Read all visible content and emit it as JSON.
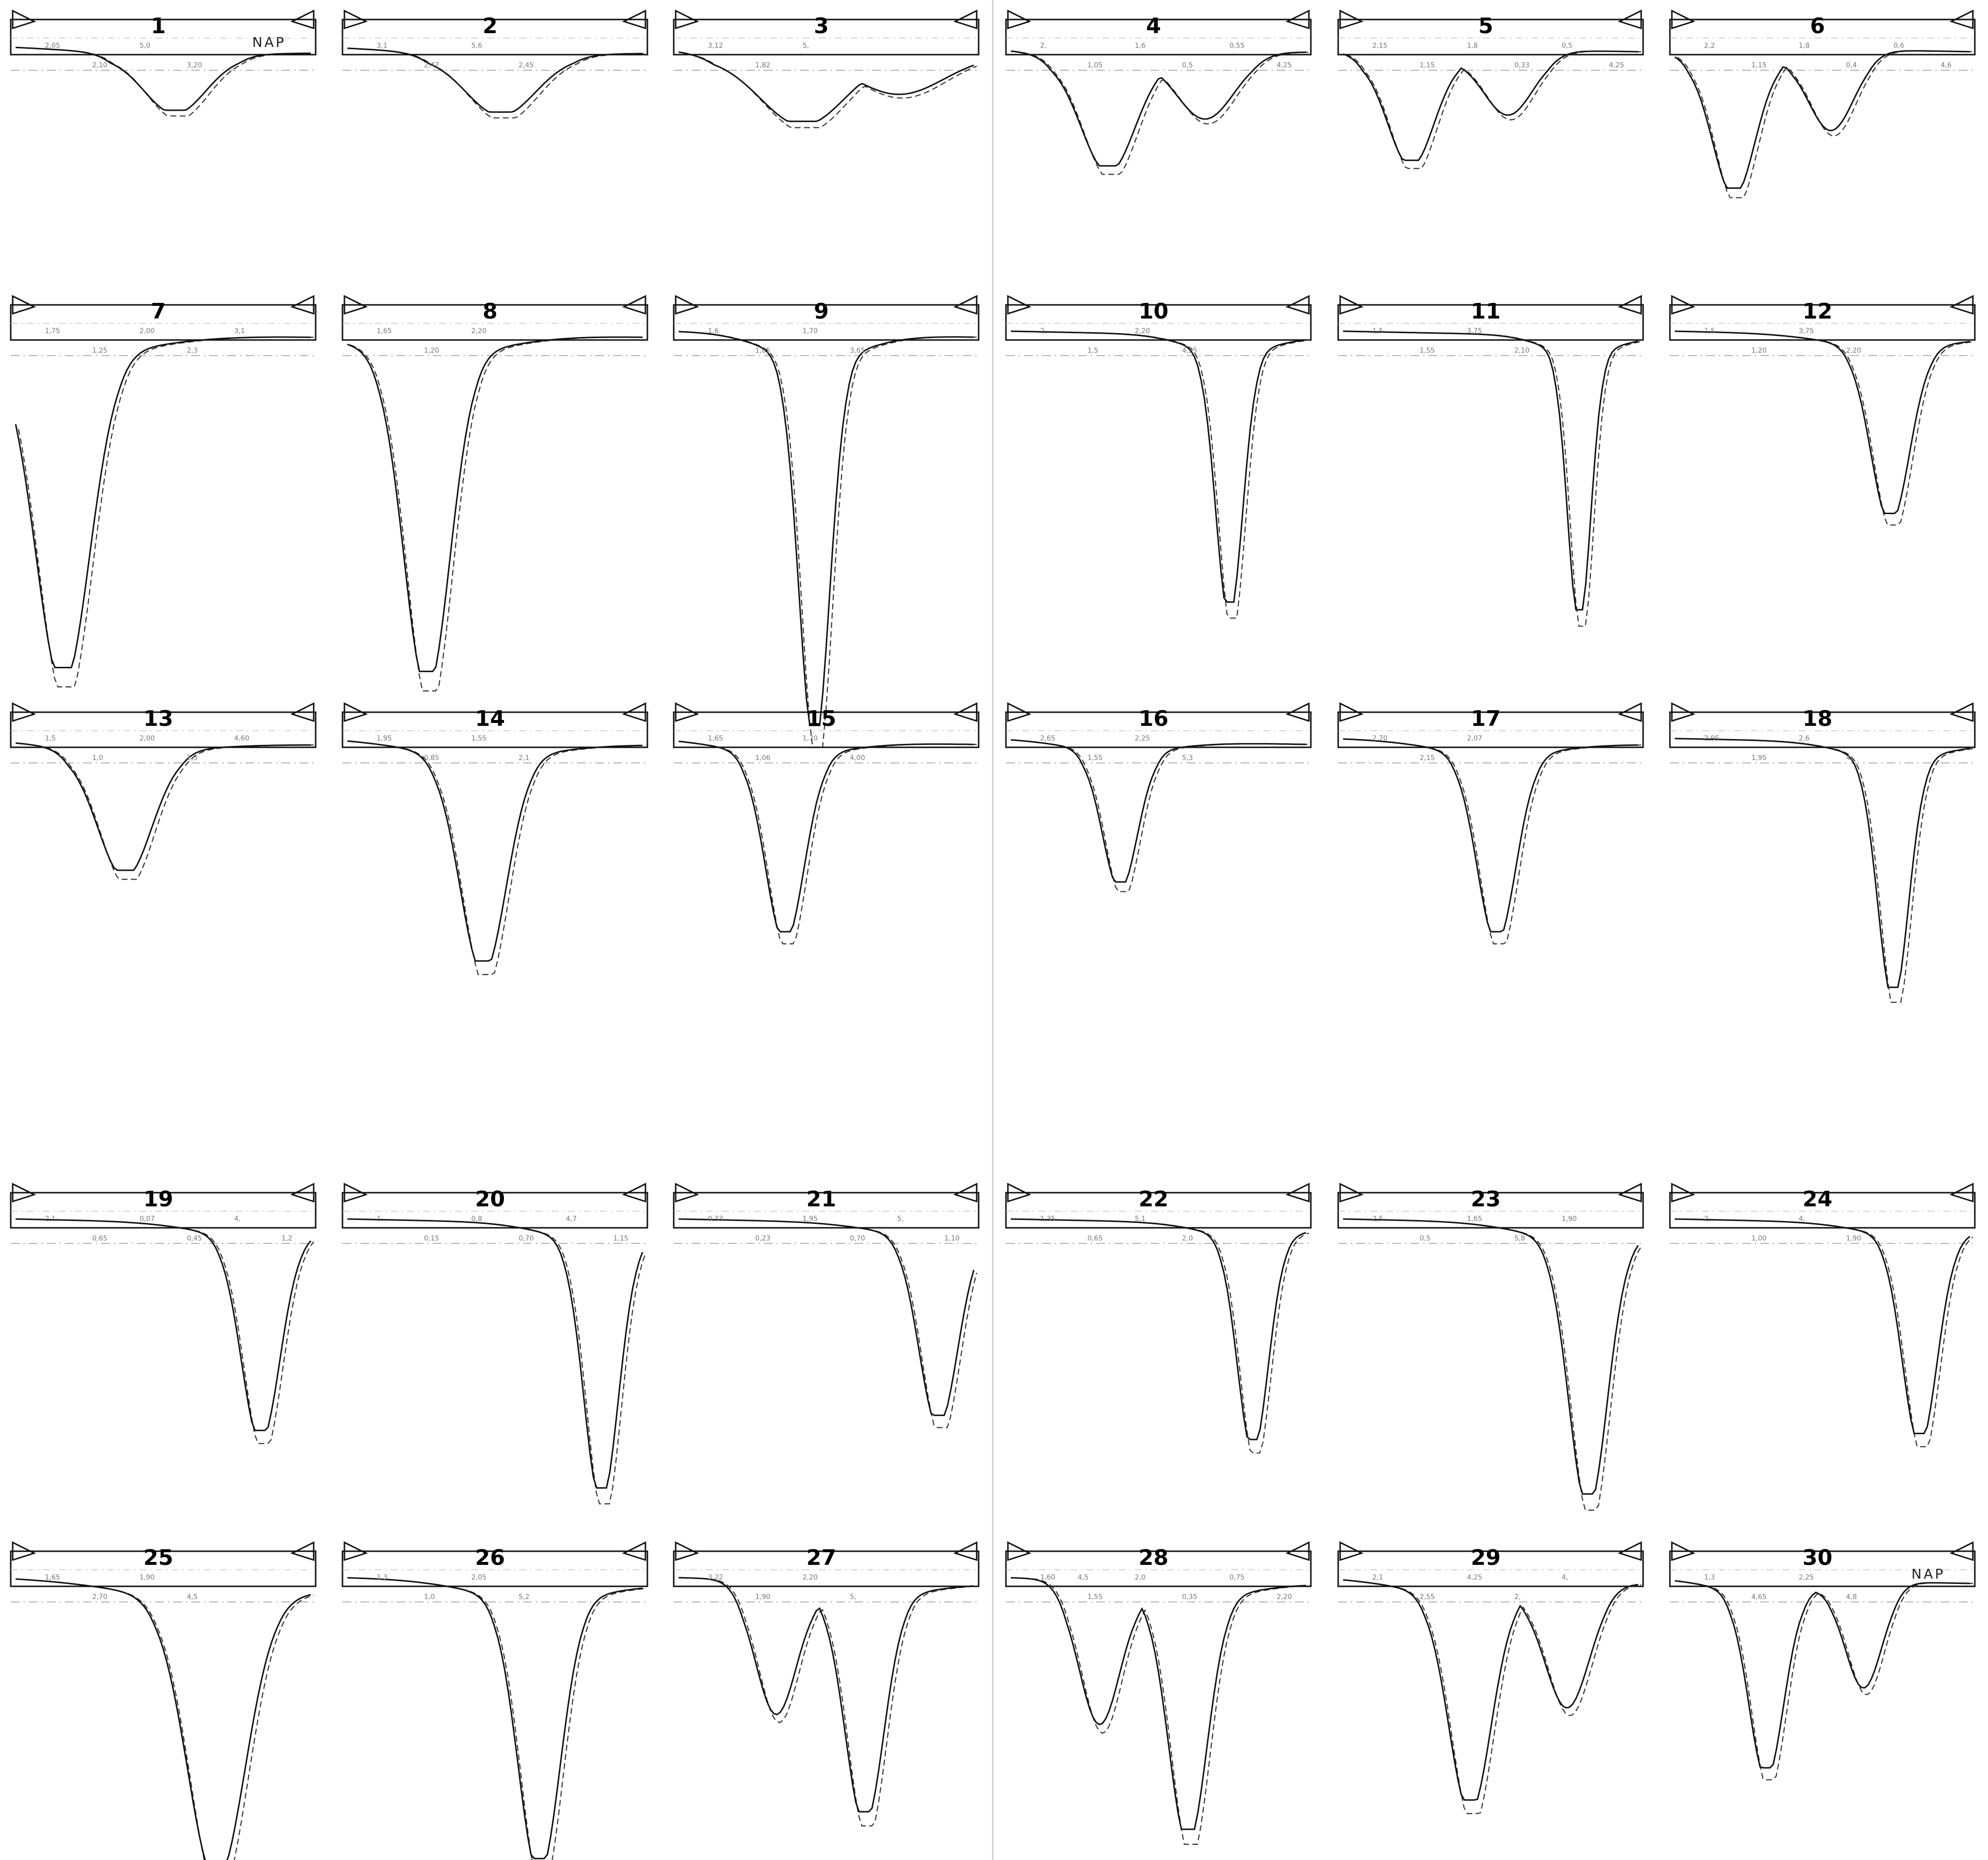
{
  "sheet": {
    "nap_label": "NAP",
    "nap_profiles": [
      1,
      30
    ]
  },
  "profiles": [
    {
      "number": "1",
      "labels": [
        "2,05",
        "2,10",
        "5,0",
        "3,20"
      ],
      "depth": 0.3,
      "shape": "single",
      "center": 0.54,
      "width": 0.16
    },
    {
      "number": "2",
      "labels": [
        "3,1",
        "2,47",
        "5,6",
        "2,45"
      ],
      "depth": 0.31,
      "shape": "single",
      "center": 0.52,
      "width": 0.18
    },
    {
      "number": "3",
      "labels": [
        "3,12",
        "1,82",
        "5,"
      ],
      "depth": 0.36,
      "shape": "double",
      "center": 0.42,
      "width": 0.22
    },
    {
      "number": "4",
      "labels": [
        "2,",
        "1,05",
        "1,6",
        "0,5",
        "0,55",
        "4,25"
      ],
      "depth": 0.6,
      "shape": "double",
      "center": 0.33,
      "width": 0.14
    },
    {
      "number": "5",
      "labels": [
        "2,15",
        "1,15",
        "1,8",
        "0,33",
        "0,5",
        "4,25"
      ],
      "depth": 0.57,
      "shape": "double",
      "center": 0.23,
      "width": 0.12
    },
    {
      "number": "6",
      "labels": [
        "2,2",
        "1,15",
        "1,8",
        "0,4",
        "0,6",
        "4,6"
      ],
      "depth": 0.72,
      "shape": "double",
      "center": 0.2,
      "width": 0.11
    },
    {
      "number": "7",
      "labels": [
        "1,75",
        "1,25",
        "2,00",
        "2,3",
        "3,1"
      ],
      "depth": 0.85,
      "shape": "single",
      "center": 0.16,
      "width": 0.14
    },
    {
      "number": "8",
      "labels": [
        "1,65",
        "1,20",
        "2,20"
      ],
      "depth": 0.86,
      "shape": "single",
      "center": 0.27,
      "width": 0.12
    },
    {
      "number": "9",
      "labels": [
        "1,6",
        "1,05",
        "1,70",
        "3,65"
      ],
      "depth": 1.0,
      "shape": "single",
      "center": 0.46,
      "width": 0.08
    },
    {
      "number": "10",
      "labels": [
        "2,",
        "1,5",
        "2,20",
        "4,25"
      ],
      "depth": 0.68,
      "shape": "single",
      "center": 0.74,
      "width": 0.07
    },
    {
      "number": "11",
      "labels": [
        "1,5",
        "1,55",
        "3,75",
        "2,10"
      ],
      "depth": 0.7,
      "shape": "single",
      "center": 0.8,
      "width": 0.06
    },
    {
      "number": "12",
      "labels": [
        "1,5",
        "1,20",
        "3,75",
        "2,20"
      ],
      "depth": 0.45,
      "shape": "single",
      "center": 0.73,
      "width": 0.1
    },
    {
      "number": "13",
      "labels": [
        "1,5",
        "1,0",
        "2,00",
        "2,3",
        "4,60"
      ],
      "depth": 0.42,
      "shape": "single",
      "center": 0.37,
      "width": 0.14
    },
    {
      "number": "14",
      "labels": [
        "1,95",
        "0,85",
        "1,55",
        "2,1"
      ],
      "depth": 0.73,
      "shape": "single",
      "center": 0.46,
      "width": 0.12
    },
    {
      "number": "15",
      "labels": [
        "1,65",
        "1,06",
        "1,70",
        "4,00"
      ],
      "depth": 0.63,
      "shape": "single",
      "center": 0.36,
      "width": 0.1
    },
    {
      "number": "16",
      "labels": [
        "2,65",
        "1,55",
        "2,25",
        "5,3"
      ],
      "depth": 0.46,
      "shape": "single",
      "center": 0.37,
      "width": 0.09
    },
    {
      "number": "17",
      "labels": [
        "2,70",
        "2,15",
        "2,07"
      ],
      "depth": 0.63,
      "shape": "single",
      "center": 0.52,
      "width": 0.1
    },
    {
      "number": "18",
      "labels": [
        "2,95",
        "1,95",
        "2,6",
        "4,"
      ],
      "depth": 0.82,
      "shape": "single",
      "center": 0.74,
      "width": 0.08
    },
    {
      "number": "19",
      "labels": [
        "2,1",
        "0,65",
        "0,07",
        "0,45",
        "4,",
        "1,2"
      ],
      "depth": 0.67,
      "shape": "single",
      "center": 0.83,
      "width": 0.1
    },
    {
      "number": "20",
      "labels": [
        "1",
        "0,15",
        "0,8",
        "0,70",
        "4,7",
        "1,15"
      ],
      "depth": 0.86,
      "shape": "single",
      "center": 0.86,
      "width": 0.09
    },
    {
      "number": "21",
      "labels": [
        "0,33",
        "0,23",
        "1,95",
        "0,70",
        "5,",
        "1,10"
      ],
      "depth": 0.62,
      "shape": "single",
      "center": 0.88,
      "width": 0.1
    },
    {
      "number": "22",
      "labels": [
        "1,35",
        "0,65",
        "5,1",
        "2,0"
      ],
      "depth": 0.7,
      "shape": "single",
      "center": 0.82,
      "width": 0.08
    },
    {
      "number": "23",
      "labels": [
        "2,5",
        "0,5",
        "1,65",
        "5,8",
        "1,90"
      ],
      "depth": 0.88,
      "shape": "single",
      "center": 0.83,
      "width": 0.1
    },
    {
      "number": "24",
      "labels": [
        "2,",
        "1,00",
        "4,",
        "1,90"
      ],
      "depth": 0.68,
      "shape": "single",
      "center": 0.83,
      "width": 0.09
    },
    {
      "number": "25",
      "labels": [
        "1,65",
        "2,70",
        "1,90",
        "4,5"
      ],
      "depth": 0.95,
      "shape": "single",
      "center": 0.68,
      "width": 0.15
    },
    {
      "number": "26",
      "labels": [
        "1,3",
        "1,0",
        "2,05",
        "5,2"
      ],
      "depth": 0.93,
      "shape": "single",
      "center": 0.65,
      "width": 0.11
    },
    {
      "number": "27",
      "labels": [
        "3,22",
        "1,90",
        "2,20",
        "5,"
      ],
      "depth": 0.77,
      "shape": "double",
      "center": 0.63,
      "width": 0.1
    },
    {
      "number": "28",
      "labels": [
        "1,60",
        "1,55",
        "2,0",
        "0,35",
        "0,75",
        "2,20",
        "4,5"
      ],
      "depth": 0.83,
      "shape": "double",
      "center": 0.6,
      "width": 0.1
    },
    {
      "number": "29",
      "labels": [
        "2,1",
        "2,55",
        "4,25",
        "2,",
        "4,"
      ],
      "depth": 0.73,
      "shape": "double",
      "center": 0.43,
      "width": 0.11
    },
    {
      "number": "30",
      "labels": [
        "1,3",
        "4,65",
        "2,25",
        "4,8"
      ],
      "depth": 0.62,
      "shape": "double",
      "center": 0.31,
      "width": 0.09
    }
  ]
}
